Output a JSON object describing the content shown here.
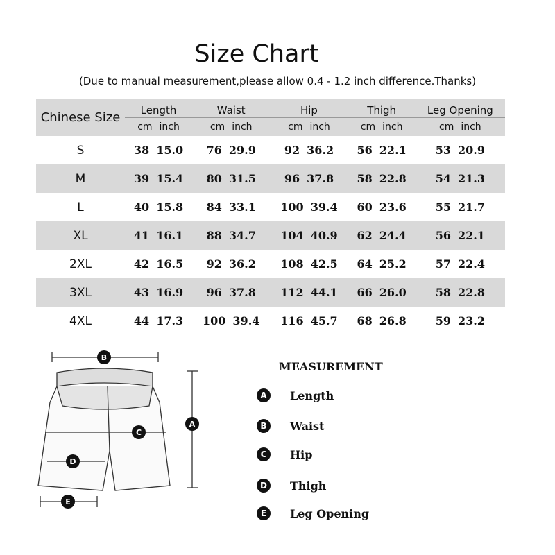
{
  "title": "Size Chart",
  "subtitle": "(Due to manual measurement,please allow 0.4 - 1.2 inch difference.Thanks)",
  "table": {
    "size_header": "Chinese Size",
    "groups": [
      "Length",
      "Waist",
      "Hip",
      "Thigh",
      "Leg Opening"
    ],
    "unit_cm": "cm",
    "unit_inch": "inch",
    "rows": [
      {
        "size": "S",
        "values": [
          [
            "38",
            "15.0"
          ],
          [
            "76",
            "29.9"
          ],
          [
            "92",
            "36.2"
          ],
          [
            "56",
            "22.1"
          ],
          [
            "53",
            "20.9"
          ]
        ]
      },
      {
        "size": "M",
        "values": [
          [
            "39",
            "15.4"
          ],
          [
            "80",
            "31.5"
          ],
          [
            "96",
            "37.8"
          ],
          [
            "58",
            "22.8"
          ],
          [
            "54",
            "21.3"
          ]
        ]
      },
      {
        "size": "L",
        "values": [
          [
            "40",
            "15.8"
          ],
          [
            "84",
            "33.1"
          ],
          [
            "100",
            "39.4"
          ],
          [
            "60",
            "23.6"
          ],
          [
            "55",
            "21.7"
          ]
        ]
      },
      {
        "size": "XL",
        "values": [
          [
            "41",
            "16.1"
          ],
          [
            "88",
            "34.7"
          ],
          [
            "104",
            "40.9"
          ],
          [
            "62",
            "24.4"
          ],
          [
            "56",
            "22.1"
          ]
        ]
      },
      {
        "size": "2XL",
        "values": [
          [
            "42",
            "16.5"
          ],
          [
            "92",
            "36.2"
          ],
          [
            "108",
            "42.5"
          ],
          [
            "64",
            "25.2"
          ],
          [
            "57",
            "22.4"
          ]
        ]
      },
      {
        "size": "3XL",
        "values": [
          [
            "43",
            "16.9"
          ],
          [
            "96",
            "37.8"
          ],
          [
            "112",
            "44.1"
          ],
          [
            "66",
            "26.0"
          ],
          [
            "58",
            "22.8"
          ]
        ]
      },
      {
        "size": "4XL",
        "values": [
          [
            "44",
            "17.3"
          ],
          [
            "100",
            "39.4"
          ],
          [
            "116",
            "45.7"
          ],
          [
            "68",
            "26.8"
          ],
          [
            "59",
            "23.2"
          ]
        ]
      }
    ]
  },
  "measurement": {
    "title": "MEASUREMENT",
    "items": [
      {
        "letter": "A",
        "label": "Length"
      },
      {
        "letter": "B",
        "label": "Waist"
      },
      {
        "letter": "C",
        "label": "Hip"
      },
      {
        "letter": "D",
        "label": "Thigh"
      },
      {
        "letter": "E",
        "label": "Leg Opening"
      }
    ]
  },
  "colors": {
    "band": "#d9d9d9",
    "text": "#111111"
  }
}
